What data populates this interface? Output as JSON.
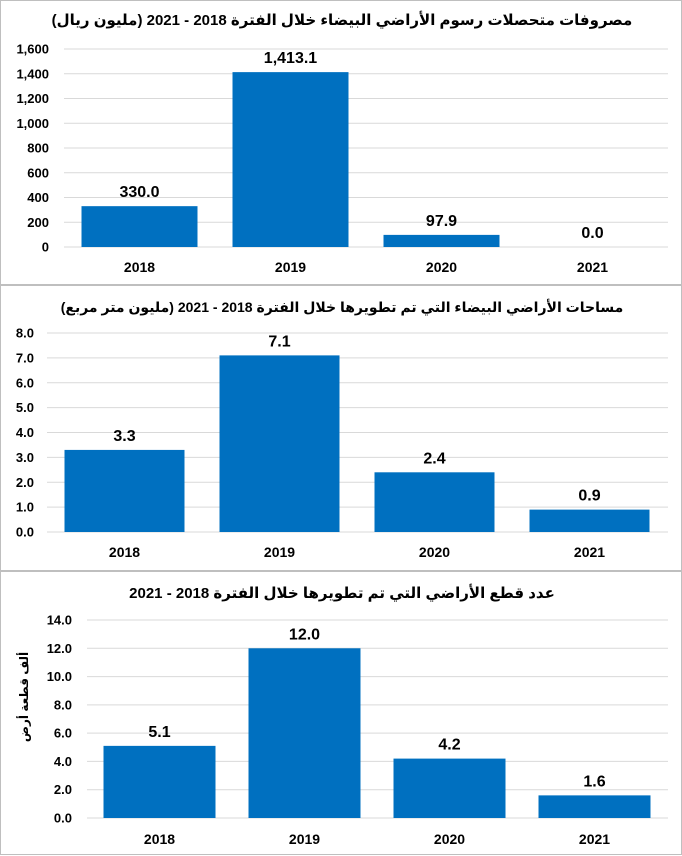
{
  "chart_data": [
    {
      "type": "bar",
      "title": "مصروفات متحصلات رسوم الأراضي البيضاء خلال الفترة 2018 - 2021 (مليون ريال)",
      "categories": [
        "2018",
        "2019",
        "2020",
        "2021"
      ],
      "values": [
        330.0,
        1413.1,
        97.9,
        0.0
      ],
      "data_labels": [
        "330.0",
        "1,413.1",
        "97.9",
        "0.0"
      ],
      "yticks": [
        0,
        200,
        400,
        600,
        800,
        1000,
        1200,
        1400,
        1600
      ],
      "ytick_labels": [
        "0",
        "200",
        "400",
        "600",
        "800",
        "1,000",
        "1,200",
        "1,400",
        "1,600"
      ],
      "ylim": [
        0,
        1600
      ],
      "xlabel": "",
      "ylabel": "",
      "grid": true,
      "bar_color": "#0070c0"
    },
    {
      "type": "bar",
      "title": "مساحات الأراضي البيضاء التي تم تطويرها خلال الفترة 2018 - 2021 (مليون متر مربع)",
      "categories": [
        "2018",
        "2019",
        "2020",
        "2021"
      ],
      "values": [
        3.3,
        7.1,
        2.4,
        0.9
      ],
      "data_labels": [
        "3.3",
        "7.1",
        "2.4",
        "0.9"
      ],
      "yticks": [
        0,
        1,
        2,
        3,
        4,
        5,
        6,
        7,
        8
      ],
      "ytick_labels": [
        "0.0",
        "1.0",
        "2.0",
        "3.0",
        "4.0",
        "5.0",
        "6.0",
        "7.0",
        "8.0"
      ],
      "ylim": [
        0,
        8
      ],
      "xlabel": "",
      "ylabel": "",
      "grid": true,
      "bar_color": "#0070c0"
    },
    {
      "type": "bar",
      "title": "عدد قطع الأراضي التي تم تطويرها خلال الفترة 2018 - 2021",
      "categories": [
        "2018",
        "2019",
        "2020",
        "2021"
      ],
      "values": [
        5.1,
        12.0,
        4.2,
        1.6
      ],
      "data_labels": [
        "5.1",
        "12.0",
        "4.2",
        "1.6"
      ],
      "yticks": [
        0,
        2,
        4,
        6,
        8,
        10,
        12,
        14
      ],
      "ytick_labels": [
        "0.0",
        "2.0",
        "4.0",
        "6.0",
        "8.0",
        "10.0",
        "12.0",
        "14.0"
      ],
      "ylim": [
        0,
        14
      ],
      "xlabel": "",
      "ylabel": "ألف قطعة أرض",
      "grid": true,
      "bar_color": "#0070c0"
    }
  ]
}
